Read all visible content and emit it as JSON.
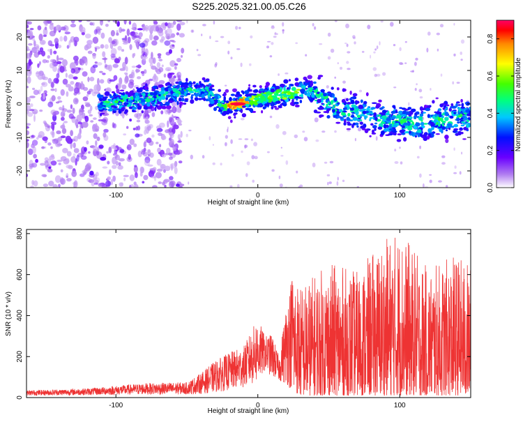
{
  "chart_data": [
    {
      "id": "spectrogram",
      "type": "heatmap",
      "title": "S225.2025.321.00.05.C26",
      "xlabel": "Height of straight line (km)",
      "ylabel": "Frequency (Hz)",
      "xlim": [
        -163,
        150
      ],
      "ylim": [
        -25,
        25
      ],
      "xticks": [
        -100,
        0,
        100
      ],
      "yticks": [
        -20,
        -10,
        0,
        10,
        20
      ],
      "colorbar": {
        "label": "Normalized spectral amplitude",
        "range": [
          0,
          0.9
        ],
        "ticks": [
          0.0,
          0.2,
          0.4,
          0.6,
          0.8
        ],
        "tick_labels": [
          "0.0",
          "0.2",
          "0.4",
          "0.6",
          "0.8"
        ]
      },
      "ridge": {
        "x": [
          -110,
          -90,
          -70,
          -50,
          -35,
          -25,
          -15,
          -5,
          5,
          20,
          35,
          45,
          55,
          65,
          80,
          95,
          110,
          125,
          140,
          150
        ],
        "freq": [
          0,
          1,
          2,
          4,
          4,
          -1,
          0,
          1,
          2,
          3,
          4,
          2,
          -1,
          -2,
          -4,
          -5,
          -6,
          -5,
          -4,
          -4
        ]
      },
      "peak": {
        "x": -14,
        "freq": 0,
        "amplitude": 0.88
      }
    },
    {
      "id": "snr",
      "type": "line",
      "xlabel": "Height of straight line (km)",
      "ylabel": "SNR (10 * v/v)",
      "xlim": [
        -163,
        150
      ],
      "ylim": [
        0,
        820
      ],
      "xticks": [
        -100,
        0,
        100
      ],
      "yticks": [
        0,
        200,
        400,
        600,
        800
      ],
      "color": "#ee3333",
      "envelope": {
        "x": [
          -163,
          -120,
          -80,
          -50,
          -40,
          -30,
          -20,
          -10,
          0,
          5,
          10,
          15,
          20,
          25,
          30,
          50,
          70,
          90,
          100,
          120,
          140,
          150
        ],
        "baseline": [
          10,
          12,
          15,
          15,
          18,
          25,
          35,
          50,
          70,
          130,
          100,
          80,
          60,
          30,
          10,
          10,
          10,
          10,
          10,
          10,
          10,
          10
        ],
        "peak": [
          35,
          45,
          70,
          75,
          120,
          180,
          220,
          250,
          390,
          300,
          310,
          200,
          450,
          650,
          550,
          660,
          620,
          780,
          820,
          630,
          700,
          650
        ]
      }
    }
  ]
}
